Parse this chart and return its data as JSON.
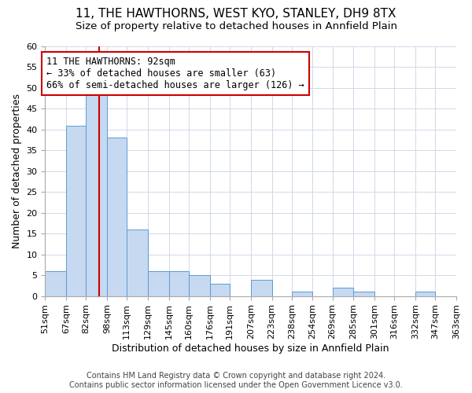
{
  "title": "11, THE HAWTHORNS, WEST KYO, STANLEY, DH9 8TX",
  "subtitle": "Size of property relative to detached houses in Annfield Plain",
  "xlabel": "Distribution of detached houses by size in Annfield Plain",
  "ylabel": "Number of detached properties",
  "footer_line1": "Contains HM Land Registry data © Crown copyright and database right 2024.",
  "footer_line2": "Contains public sector information licensed under the Open Government Licence v3.0.",
  "bin_edges": [
    51,
    67,
    82,
    98,
    113,
    129,
    145,
    160,
    176,
    191,
    207,
    223,
    238,
    254,
    269,
    285,
    301,
    316,
    332,
    347,
    363
  ],
  "bin_labels": [
    "51sqm",
    "67sqm",
    "82sqm",
    "98sqm",
    "113sqm",
    "129sqm",
    "145sqm",
    "160sqm",
    "176sqm",
    "191sqm",
    "207sqm",
    "223sqm",
    "238sqm",
    "254sqm",
    "269sqm",
    "285sqm",
    "301sqm",
    "316sqm",
    "332sqm",
    "347sqm",
    "363sqm"
  ],
  "counts": [
    6,
    41,
    50,
    38,
    16,
    6,
    6,
    5,
    3,
    0,
    4,
    0,
    1,
    0,
    2,
    1,
    0,
    0,
    1,
    0
  ],
  "bar_color": "#c6d9f0",
  "bar_edge_color": "#5b9bd5",
  "property_size": 92,
  "vline_color": "#cc0000",
  "annotation_text": "11 THE HAWTHORNS: 92sqm\n← 33% of detached houses are smaller (63)\n66% of semi-detached houses are larger (126) →",
  "annotation_box_edge": "#cc0000",
  "annotation_box_face": "#ffffff",
  "ylim": [
    0,
    60
  ],
  "yticks": [
    0,
    5,
    10,
    15,
    20,
    25,
    30,
    35,
    40,
    45,
    50,
    55,
    60
  ],
  "grid_color": "#d0d8e8",
  "bg_color": "#ffffff",
  "title_fontsize": 11,
  "subtitle_fontsize": 9.5,
  "axis_label_fontsize": 9,
  "tick_fontsize": 8,
  "annotation_fontsize": 8.5,
  "footer_fontsize": 7
}
